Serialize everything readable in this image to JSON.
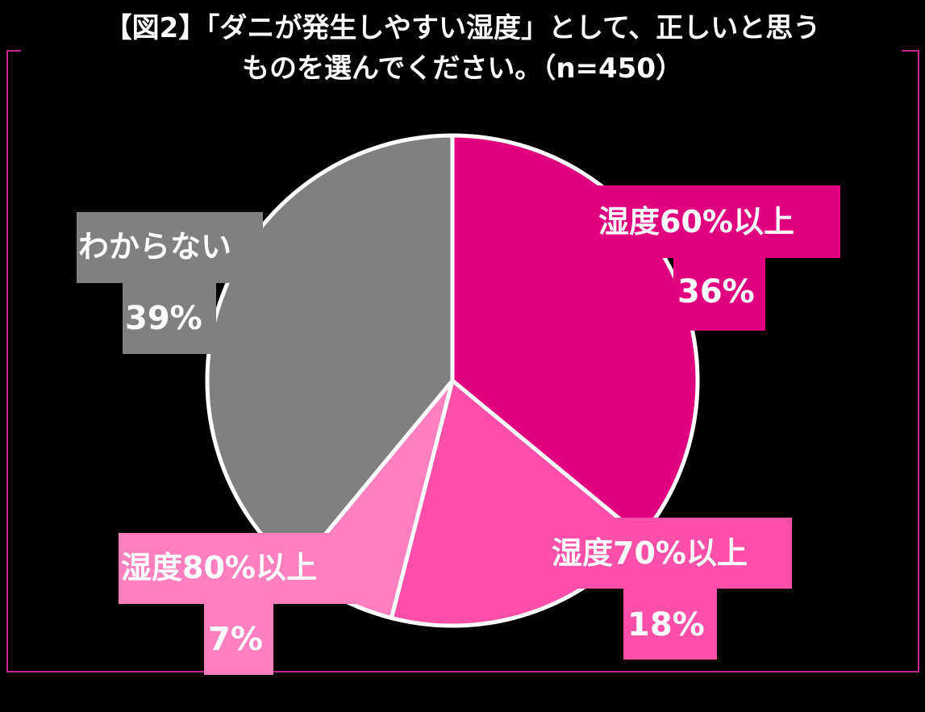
{
  "title": {
    "line1": "【図2】「ダニが発生しやすい湿度」として、正しいと思う",
    "line2": "ものを選んでください。（n=450）"
  },
  "chart_data": {
    "type": "pie",
    "categories": [
      "湿度60%以上",
      "湿度70%以上",
      "湿度80%以上",
      "わからない"
    ],
    "values": [
      36,
      18,
      7,
      39
    ],
    "value_labels": [
      "36%",
      "18%",
      "7%",
      "39%"
    ],
    "colors": [
      "#e0007f",
      "#ff4fa8",
      "#ff7fbf",
      "#808080"
    ],
    "start": "12 o'clock",
    "direction": "clockwise"
  }
}
